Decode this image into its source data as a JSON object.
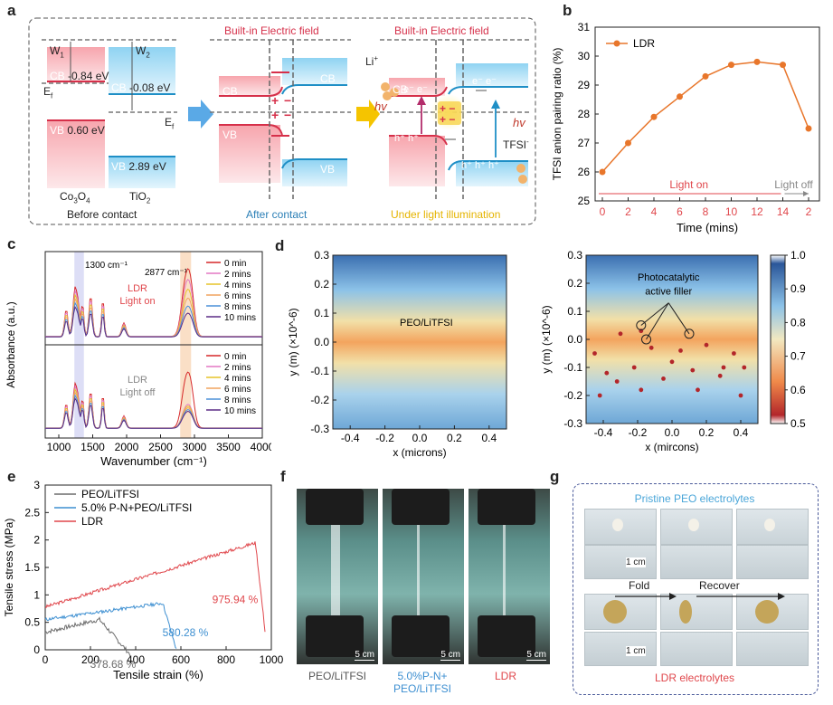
{
  "panels": {
    "a": "a",
    "b": "b",
    "c": "c",
    "d": "d",
    "e": "e",
    "f": "f",
    "g": "g"
  },
  "panel_a": {
    "w1": "W",
    "w1_sub": "1",
    "w2": "W",
    "w2_sub": "2",
    "ef": "E",
    "ef_sub": "f",
    "ef2": "E",
    "ef2_sub": "f",
    "cb1": "CB",
    "cb1_val": "-0.84 eV",
    "cb2": "CB",
    "cb2_val": "-0.08 eV",
    "vb1": "VB",
    "vb1_val": "0.60 eV",
    "vb2": "VB",
    "vb2_val": "2.89 eV",
    "mat1": "Co",
    "mat1_sub": "3",
    "mat1_b": "O",
    "mat1_sub2": "4",
    "mat2": "TiO",
    "mat2_sub": "2",
    "before": "Before contact",
    "after": "After contact",
    "under": "Under light illumination",
    "field1": "Built-in Electric field",
    "field2": "Built-in Electric field",
    "cb_mid_l": "CB",
    "cb_mid_r": "CB",
    "vb_mid_l": "VB",
    "vb_mid_r": "VB",
    "cb_right_l": "CB",
    "li": "Li",
    "li_sup": "+",
    "hv1": "hv",
    "hv2": "hv",
    "tfsi": "TFSI",
    "tfsi_sup": "-",
    "e_minus": "e⁻ e⁻",
    "e_minus2": "e⁻  e⁻",
    "h_plus": "h⁺ h⁺",
    "h_plus2": "h⁺ h⁺  h⁺"
  },
  "chart_b": {
    "type": "line",
    "ylabel": "TFSI anion pairing ratio (%)",
    "xlabel": "Time (mins)",
    "legend": "LDR",
    "x_ticks": [
      "0",
      "2",
      "4",
      "6",
      "8",
      "10",
      "12",
      "14",
      "2"
    ],
    "y_ticks": [
      "25",
      "26",
      "27",
      "28",
      "29",
      "30",
      "31"
    ],
    "ylim": [
      25,
      31
    ],
    "values": [
      26.0,
      27.0,
      27.9,
      28.6,
      29.3,
      29.7,
      29.8,
      29.7,
      27.5
    ],
    "light_on": "Light on",
    "light_off": "Light off",
    "color": "#e8762b"
  },
  "chart_c": {
    "type": "line",
    "ylabel": "Absorbance (a.u.)",
    "xlabel": "Wavenumber (cm⁻¹)",
    "x_ticks": [
      "1000",
      "1500",
      "2000",
      "2500",
      "3000",
      "3500",
      "4000"
    ],
    "xlim": [
      800,
      4000
    ],
    "ann1": "1300 cm⁻¹",
    "ann2": "2877 cm⁻¹",
    "top_label": "LDR\nLight on",
    "bottom_label": "LDR\nLight off",
    "legend": [
      "0 min",
      "2 mins",
      "4 mins",
      "6 mins",
      "8 mins",
      "10 mins"
    ],
    "colors": [
      "#d62728",
      "#e377c2",
      "#e6c229",
      "#f0a35e",
      "#4a90d9",
      "#5b2a86"
    ]
  },
  "chart_d1": {
    "type": "heatmap",
    "label": "PEO/LiTFSI",
    "ylabel": "y (m) (×10^-6)",
    "xlabel": "x (microns)",
    "x_ticks": [
      "-0.4",
      "-0.2",
      "0.0",
      "0.2",
      "0.4"
    ],
    "y_ticks": [
      "0.3",
      "0.2",
      "0.1",
      "0.0",
      "-0.1",
      "-0.2",
      "-0.3"
    ]
  },
  "chart_d2": {
    "type": "heatmap",
    "label": "Photocatalytic\nactive filler",
    "ylabel": "y (m) (×10^-6)",
    "xlabel": "x (mircons)",
    "x_ticks": [
      "-0.4",
      "-0.2",
      "0.0",
      "0.2",
      "0.4"
    ],
    "y_ticks": [
      "0.3",
      "0.2",
      "0.1",
      "0.0",
      "-0.1",
      "-0.2",
      "-0.3"
    ],
    "colorbar_ticks": [
      "1.0",
      "0.9",
      "0.8",
      "0.7",
      "0.6",
      "0.5"
    ]
  },
  "chart_e": {
    "type": "line",
    "ylabel": "Tensile stress (MPa)",
    "xlabel": "Tensile strain (%)",
    "x_ticks": [
      "0",
      "200",
      "400",
      "600",
      "800",
      "1000"
    ],
    "y_ticks": [
      "0",
      "0.5",
      "1",
      "1.5",
      "2",
      "2.5",
      "3"
    ],
    "xlim": [
      0,
      1000
    ],
    "ylim": [
      0,
      3
    ],
    "series": [
      {
        "name": "PEO/LiTFSI",
        "color": "#6b6b6b",
        "end": "378.68 %"
      },
      {
        "name": "5.0% P-N+PEO/LiTFSI",
        "color": "#3d8fd1",
        "end": "580.28 %"
      },
      {
        "name": "LDR",
        "color": "#e0474c",
        "end": "975.94 %"
      }
    ]
  },
  "panel_f": {
    "scale": "5 cm",
    "captions": [
      "PEO/LiTFSI",
      "5.0%P-N+\nPEO/LiTFSI",
      "LDR"
    ]
  },
  "panel_g": {
    "top": "Pristine PEO electrolytes",
    "bottom": "LDR electrolytes",
    "fold": "Fold",
    "recover": "Recover",
    "scale": "1 cm"
  }
}
